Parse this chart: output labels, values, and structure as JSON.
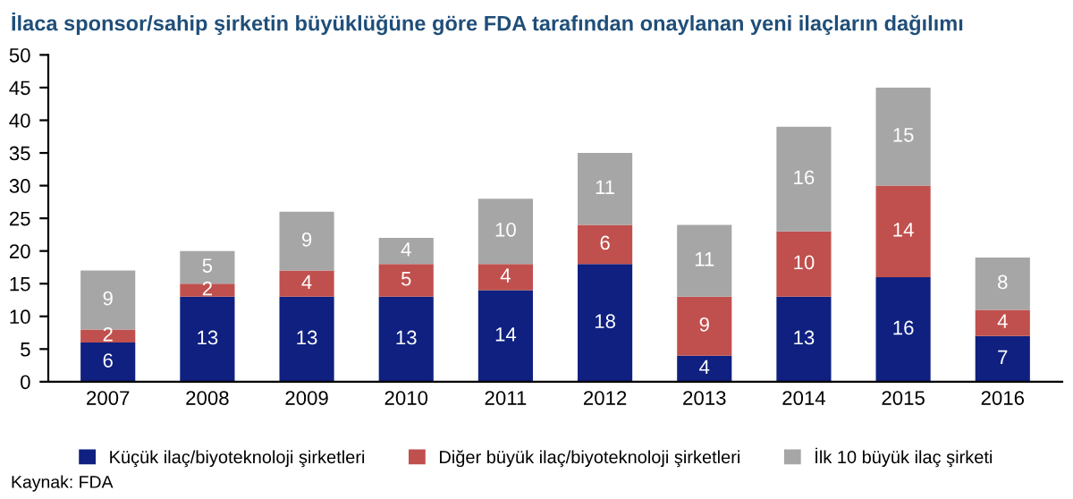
{
  "chart_data": {
    "type": "bar",
    "stacked": true,
    "data_labels": true,
    "title": "İlaca sponsor/sahip şirketin büyüklüğüne göre FDA tarafından onaylanan yeni ilaçların dağılımı",
    "categories": [
      "2007",
      "2008",
      "2009",
      "2010",
      "2011",
      "2012",
      "2013",
      "2014",
      "2015",
      "2016"
    ],
    "series": [
      {
        "name": "Küçük ilaç/biyoteknoloji şirketleri",
        "color": "#0f2080",
        "values": [
          6,
          13,
          13,
          13,
          14,
          18,
          4,
          13,
          16,
          7
        ]
      },
      {
        "name": "Diğer büyük ilaç/biyoteknoloji şirketleri",
        "color": "#c0504d",
        "values": [
          2,
          2,
          4,
          5,
          4,
          6,
          9,
          10,
          14,
          4
        ]
      },
      {
        "name": "İlk 10 büyük ilaç şirketi",
        "color": "#a6a6a6",
        "values": [
          9,
          5,
          9,
          4,
          10,
          11,
          11,
          16,
          15,
          8
        ]
      }
    ],
    "ylim": [
      0,
      50
    ],
    "yticks": [
      0,
      5,
      10,
      15,
      20,
      25,
      30,
      35,
      40,
      45,
      50
    ],
    "grid": false,
    "legend": "bottom",
    "annotations": [
      "Kaynak: FDA"
    ]
  }
}
